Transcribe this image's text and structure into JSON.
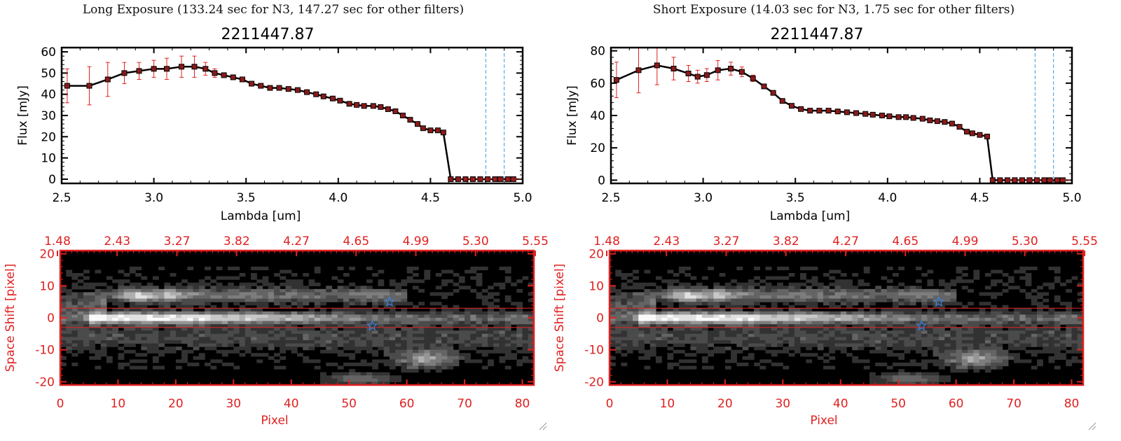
{
  "panels": [
    {
      "title": "Long Exposure (133.24 sec for N3, 147.27 sec for other filters)",
      "spectrum_title": "2211447.87",
      "image_title": ""
    },
    {
      "title": "Short Exposure (14.03 sec for N3, 1.75 sec for other filters)",
      "spectrum_title": "2211447.87",
      "image_title": ""
    }
  ],
  "colors": {
    "spectrum_line": "#000000",
    "marker": "#8b1a1a",
    "error_bar": "#e32020",
    "dashed_lines": "#3a9be0",
    "image_axes": "#e02020",
    "star": "#3a7fd9"
  },
  "chart_data": [
    {
      "type": "line",
      "title": "2211447.87",
      "xlabel": "Lambda [um]",
      "ylabel": "Flux [mJy]",
      "xlim": [
        2.5,
        5.0
      ],
      "ylim": [
        -2,
        62
      ],
      "xticks": [
        "2.5",
        "3.0",
        "3.5",
        "4.0",
        "4.5",
        "5.0"
      ],
      "yticks": [
        "0",
        "10",
        "20",
        "30",
        "40",
        "50",
        "60"
      ],
      "grid": false,
      "vlines": [
        4.8,
        4.9
      ],
      "series": [
        {
          "x": [
            2.53,
            2.65,
            2.75,
            2.84,
            2.92,
            3.0,
            3.07,
            3.15,
            3.22,
            3.28,
            3.33,
            3.38,
            3.43,
            3.48,
            3.53,
            3.58,
            3.63,
            3.68,
            3.73,
            3.78,
            3.83,
            3.88,
            3.92,
            3.97,
            4.01,
            4.06,
            4.1,
            4.14,
            4.19,
            4.23,
            4.27,
            4.31,
            4.35,
            4.39,
            4.43,
            4.46,
            4.5,
            4.54,
            4.57,
            4.61,
            4.65,
            4.69,
            4.73,
            4.77,
            4.81,
            4.85,
            4.88,
            4.92,
            4.95
          ],
          "y": [
            44,
            44,
            47,
            50,
            51,
            52,
            52,
            53,
            53,
            52,
            50,
            49,
            48,
            47,
            45,
            44,
            43,
            43,
            42.5,
            42,
            41,
            40,
            39,
            38,
            37,
            35.5,
            35,
            34.5,
            34.5,
            34,
            33,
            32,
            30,
            28,
            26,
            24,
            23,
            23,
            22,
            0,
            0,
            0,
            0,
            0,
            0,
            0,
            0,
            0,
            0
          ],
          "err": [
            8,
            9,
            8,
            5,
            4,
            4,
            5,
            5,
            5,
            3,
            2,
            1,
            0,
            0,
            0,
            0,
            0,
            0,
            0,
            0,
            0,
            0,
            0,
            0,
            0,
            0,
            0,
            0,
            0,
            0,
            0,
            0,
            0,
            0,
            0,
            0,
            0,
            0,
            0,
            0,
            0,
            0,
            0,
            0,
            0,
            0,
            0,
            0,
            0
          ]
        }
      ]
    },
    {
      "type": "heatmap",
      "xlabel": "Pixel",
      "ylabel": "Space Shift [pixel]",
      "xlim": [
        0,
        82
      ],
      "ylim": [
        -21,
        21
      ],
      "xticks": [
        "0",
        "10",
        "20",
        "30",
        "40",
        "50",
        "60",
        "70",
        "80"
      ],
      "yticks": [
        "-20",
        "-10",
        "0",
        "10",
        "20"
      ],
      "top_tick_labels": [
        "1.48",
        "2.43",
        "3.27",
        "3.82",
        "4.27",
        "4.65",
        "4.99",
        "5.30",
        "5.55"
      ],
      "hlines": [
        3,
        -3
      ],
      "stars": [
        {
          "x": 57,
          "y": 5
        },
        {
          "x": 54,
          "y": -2.5
        }
      ]
    },
    {
      "type": "line",
      "title": "2211447.87",
      "xlabel": "Lambda [um]",
      "ylabel": "Flux [mJy]",
      "xlim": [
        2.5,
        5.0
      ],
      "ylim": [
        -2,
        82
      ],
      "xticks": [
        "2.5",
        "3.0",
        "3.5",
        "4.0",
        "4.5",
        "5.0"
      ],
      "yticks": [
        "0",
        "20",
        "40",
        "60",
        "80"
      ],
      "grid": false,
      "vlines": [
        4.8,
        4.9
      ],
      "series": [
        {
          "x": [
            2.53,
            2.65,
            2.75,
            2.84,
            2.92,
            2.97,
            3.02,
            3.08,
            3.15,
            3.21,
            3.27,
            3.33,
            3.38,
            3.43,
            3.48,
            3.53,
            3.58,
            3.63,
            3.68,
            3.73,
            3.78,
            3.83,
            3.88,
            3.92,
            3.97,
            4.01,
            4.06,
            4.1,
            4.14,
            4.19,
            4.23,
            4.27,
            4.31,
            4.35,
            4.39,
            4.43,
            4.46,
            4.5,
            4.54,
            4.57,
            4.61,
            4.65,
            4.69,
            4.73,
            4.77,
            4.81,
            4.85,
            4.88,
            4.92,
            4.95
          ],
          "y": [
            62,
            68,
            71,
            69,
            66,
            64,
            65,
            68,
            69,
            67,
            63,
            58,
            54,
            49,
            46,
            44,
            43,
            43,
            43,
            42.5,
            42,
            41.5,
            41,
            40.5,
            40,
            39.5,
            39,
            39,
            38.5,
            38,
            37,
            36.5,
            36,
            35,
            33,
            30,
            29,
            28,
            27,
            0,
            0,
            0,
            0,
            0,
            0,
            0,
            0,
            0,
            0,
            0
          ],
          "err": [
            11,
            14,
            12,
            7,
            5,
            4,
            4,
            6,
            4,
            3,
            2,
            1,
            0,
            0,
            0,
            0,
            0,
            0,
            0,
            0,
            0,
            0,
            0,
            0,
            0,
            0,
            0,
            0,
            0,
            0,
            0,
            0,
            0,
            0,
            0,
            0,
            0,
            0,
            0,
            0,
            0,
            0,
            0,
            0,
            0,
            0,
            0,
            0,
            0,
            0
          ]
        }
      ]
    },
    {
      "type": "heatmap",
      "xlabel": "Pixel",
      "ylabel": "Space Shift [pixel]",
      "xlim": [
        0,
        82
      ],
      "ylim": [
        -21,
        21
      ],
      "xticks": [
        "0",
        "10",
        "20",
        "30",
        "40",
        "50",
        "60",
        "70",
        "80"
      ],
      "yticks": [
        "-20",
        "-10",
        "0",
        "10",
        "20"
      ],
      "top_tick_labels": [
        "1.48",
        "2.43",
        "3.27",
        "3.82",
        "4.27",
        "4.65",
        "4.99",
        "5.30",
        "5.55"
      ],
      "hlines": [
        3,
        -3
      ],
      "stars": [
        {
          "x": 57,
          "y": 5
        },
        {
          "x": 54,
          "y": -2.5
        }
      ]
    }
  ]
}
